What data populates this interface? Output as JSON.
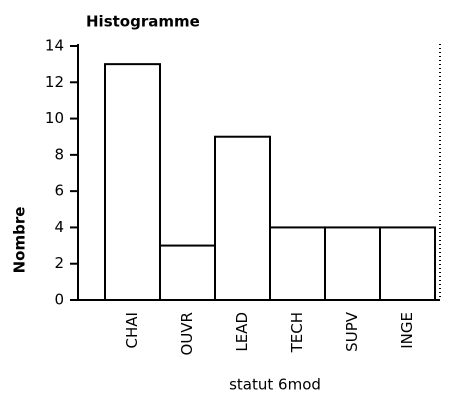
{
  "chart_data": {
    "type": "bar",
    "title": "Histogramme",
    "x_label": "statut 6mod",
    "y_label": "Nombre",
    "categories": [
      "CHAI",
      "OUVR",
      "LEAD",
      "TECH",
      "SUPV",
      "INGE"
    ],
    "values": [
      13,
      3,
      9,
      4,
      4,
      4
    ],
    "color": "#ffffff",
    "ylim": [
      0,
      14
    ],
    "yticks": [
      0,
      2,
      4,
      6,
      8,
      10,
      12,
      14
    ],
    "grid": false
  }
}
